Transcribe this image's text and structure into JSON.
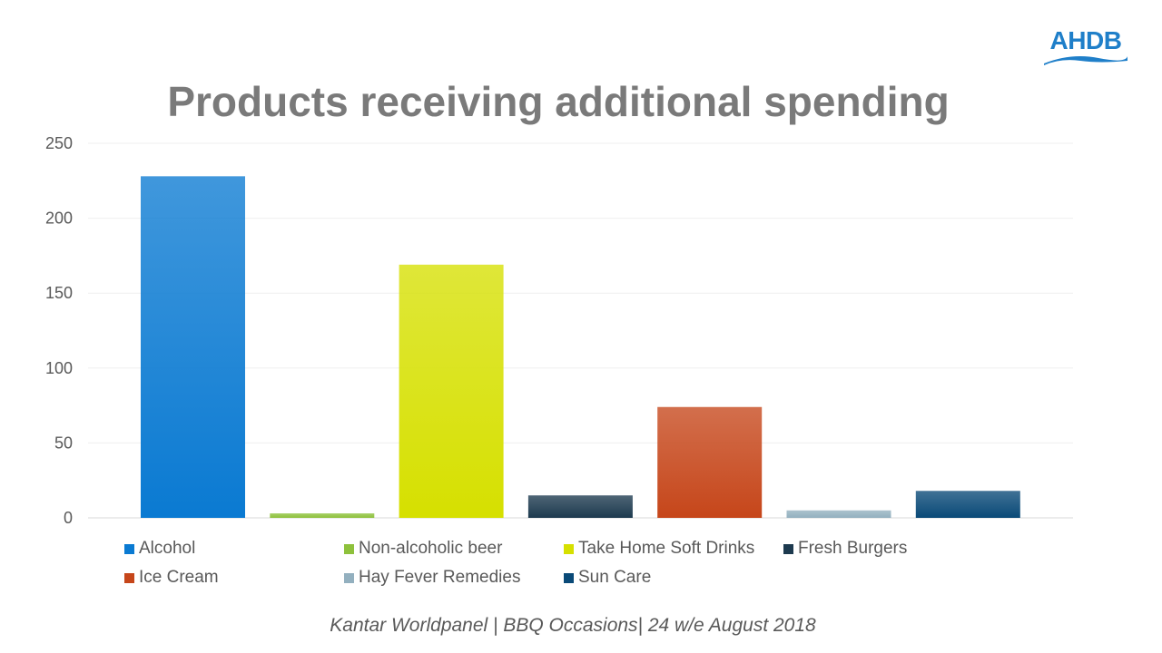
{
  "logo": {
    "text": "AHDB"
  },
  "chart_data": {
    "type": "bar",
    "title": "Products receiving additional spending",
    "categories": [
      "Alcohol",
      "Non-alcoholic beer",
      "Take Home Soft Drinks",
      "Fresh Burgers",
      "Ice Cream",
      "Hay Fever Remedies",
      "Sun Care"
    ],
    "values": [
      228,
      3,
      169,
      15,
      74,
      5,
      18
    ],
    "colors": [
      "#0a7ad2",
      "#8ec13c",
      "#d6e000",
      "#1d3a4f",
      "#c6461a",
      "#93b0bf",
      "#0a4a78"
    ],
    "ylim": [
      0,
      250
    ],
    "yticks": [
      0,
      50,
      100,
      150,
      200,
      250
    ],
    "xlabel": "",
    "ylabel": "",
    "grid": true,
    "legend_position": "bottom"
  },
  "source": "Kantar Worldpanel | BBQ Occasions| 24 w/e August 2018"
}
